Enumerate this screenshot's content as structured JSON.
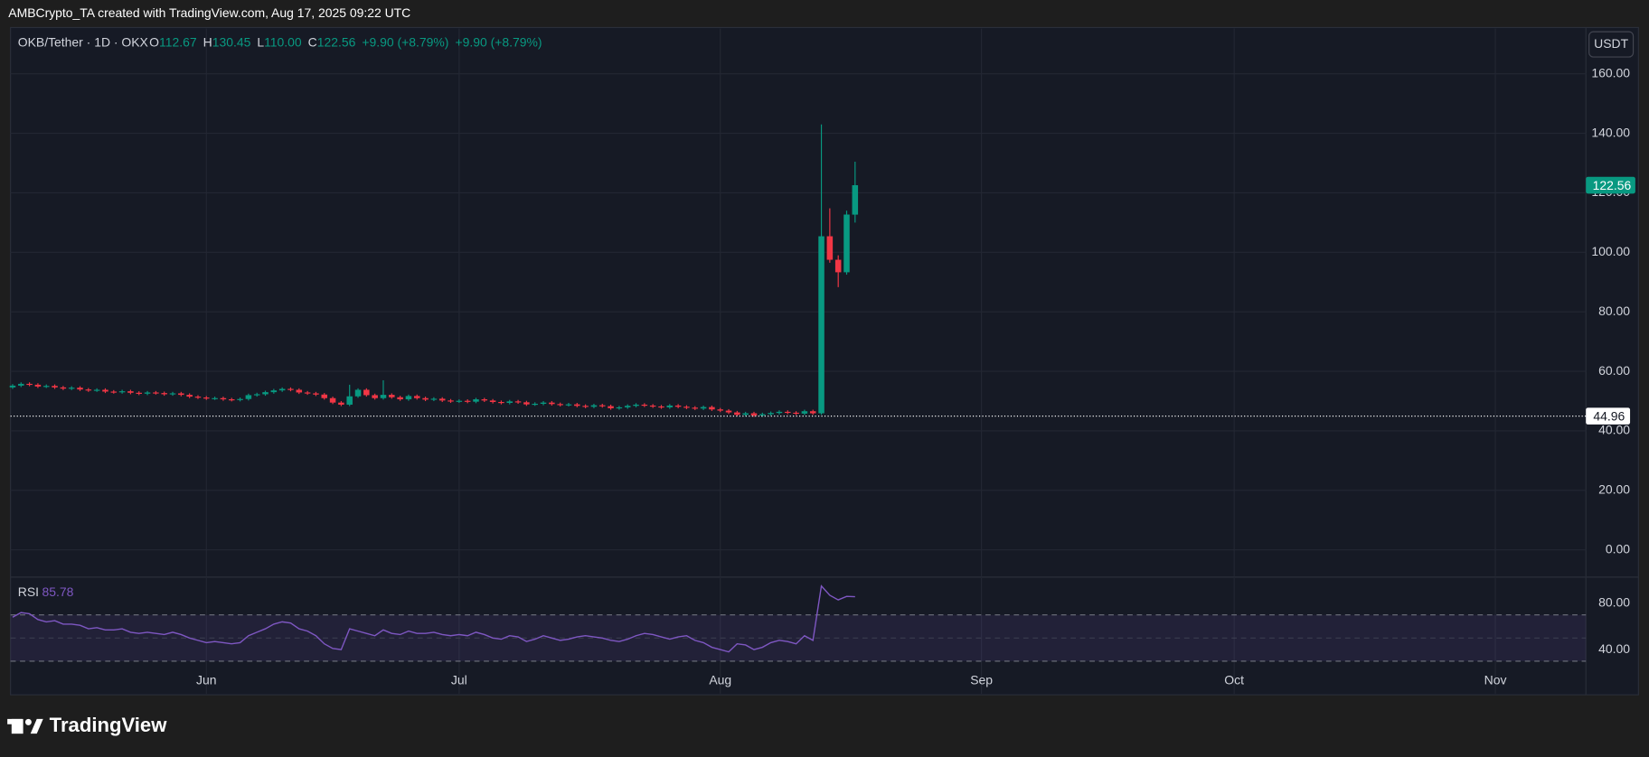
{
  "header": {
    "attribution": "AMBCrypto_TA created with TradingView.com, Aug 17, 2025 09:22 UTC",
    "brand": "TradingView"
  },
  "chart_data": {
    "type": "candlestick",
    "legend": {
      "symbol": "OKB/Tether · 1D · OKX",
      "o_label": "O",
      "o": "112.67",
      "h_label": "H",
      "h": "130.45",
      "l_label": "L",
      "l": "110.00",
      "c_label": "C",
      "c": "122.56",
      "change": "+9.90 (+8.79%)"
    },
    "currency": "USDT",
    "up_color": "#089981",
    "down_color": "#f23645",
    "open": [
      54.6,
      55.2,
      55.8,
      55.5,
      54.9,
      55.1,
      54.6,
      54.2,
      54.5,
      53.9,
      53.6,
      53.8,
      53.2,
      53.0,
      53.3,
      52.8,
      52.5,
      52.9,
      52.7,
      52.3,
      52.6,
      52.1,
      51.5,
      51.2,
      50.9,
      51.0,
      50.6,
      50.4,
      50.7,
      52.0,
      52.3,
      53.0,
      53.6,
      54.1,
      53.8,
      52.9,
      52.6,
      52.2,
      51.0,
      49.5,
      48.8,
      51.6,
      53.8,
      52.0,
      51.0,
      52.1,
      51.3,
      50.6,
      51.7,
      51.0,
      50.5,
      50.8,
      50.2,
      49.9,
      50.1,
      49.8,
      50.6,
      50.2,
      49.7,
      49.4,
      49.9,
      49.6,
      48.9,
      49.1,
      49.5,
      49.0,
      48.7,
      48.9,
      48.4,
      48.1,
      48.6,
      48.3,
      47.6,
      47.9,
      48.4,
      48.8,
      48.5,
      48.2,
      47.9,
      48.5,
      48.1,
      47.8,
      47.5,
      48.0,
      47.2,
      46.8,
      46.2,
      45.4,
      45.9,
      45.2,
      45.6,
      46.0,
      46.4,
      46.1,
      45.8,
      46.6,
      45.9,
      105.4,
      97.5,
      93.3,
      112.67
    ],
    "high": [
      55.7,
      56.3,
      56.3,
      56.0,
      55.6,
      55.6,
      55.1,
      55.0,
      55.0,
      54.4,
      54.3,
      54.3,
      53.7,
      53.8,
      53.8,
      53.3,
      53.4,
      53.4,
      53.2,
      53.1,
      53.1,
      52.6,
      52.0,
      51.7,
      51.5,
      51.5,
      51.1,
      51.2,
      52.5,
      52.8,
      53.5,
      54.1,
      54.6,
      54.6,
      54.3,
      53.4,
      53.1,
      52.7,
      51.5,
      50.0,
      55.5,
      54.3,
      54.3,
      52.5,
      57.0,
      52.6,
      51.8,
      52.2,
      52.2,
      51.5,
      51.3,
      51.3,
      50.7,
      50.6,
      50.6,
      51.1,
      51.1,
      50.7,
      50.2,
      50.4,
      50.4,
      50.1,
      49.6,
      50.0,
      50.0,
      49.5,
      49.4,
      49.4,
      48.9,
      49.1,
      49.1,
      48.8,
      48.4,
      48.9,
      49.3,
      49.3,
      49.0,
      48.7,
      49.0,
      49.0,
      48.6,
      48.3,
      48.5,
      48.5,
      47.7,
      47.3,
      46.7,
      46.4,
      46.4,
      46.1,
      46.5,
      46.9,
      46.9,
      46.6,
      47.1,
      47.1,
      143,
      114.8,
      99.0,
      114.0,
      130.45
    ],
    "low": [
      54.1,
      54.7,
      55.0,
      54.4,
      54.4,
      54.1,
      53.7,
      53.7,
      53.4,
      53.1,
      53.1,
      52.7,
      52.5,
      52.5,
      52.3,
      52.0,
      52.0,
      52.2,
      51.8,
      51.8,
      51.6,
      51.0,
      50.7,
      50.4,
      50.4,
      50.1,
      49.9,
      49.9,
      50.2,
      51.5,
      51.8,
      52.5,
      53.1,
      53.3,
      52.4,
      52.1,
      51.7,
      50.5,
      49.0,
      48.3,
      48.3,
      51.1,
      51.5,
      50.5,
      50.5,
      50.8,
      50.1,
      50.1,
      50.5,
      50.0,
      50.0,
      49.7,
      49.4,
      49.4,
      49.3,
      49.3,
      49.7,
      49.2,
      48.9,
      48.9,
      49.1,
      48.4,
      48.4,
      48.6,
      48.5,
      48.2,
      48.2,
      47.9,
      47.6,
      47.6,
      47.8,
      47.1,
      47.1,
      47.4,
      47.9,
      48.0,
      47.7,
      47.4,
      47.4,
      47.6,
      47.3,
      47.0,
      47.0,
      46.7,
      46.3,
      45.7,
      44.9,
      44.9,
      44.7,
      44.7,
      45.1,
      45.5,
      45.6,
      45.3,
      45.3,
      45.4,
      45.4,
      96.5,
      88.3,
      92.5,
      110.0
    ],
    "close": [
      55.2,
      55.8,
      55.5,
      54.9,
      55.1,
      54.6,
      54.2,
      54.5,
      53.9,
      53.6,
      53.8,
      53.2,
      53.0,
      53.3,
      52.8,
      52.5,
      52.9,
      52.7,
      52.3,
      52.6,
      52.1,
      51.5,
      51.2,
      50.9,
      51.0,
      50.6,
      50.4,
      50.7,
      52.0,
      52.3,
      53.0,
      53.6,
      54.1,
      53.8,
      52.9,
      52.6,
      52.2,
      51.0,
      49.5,
      48.8,
      51.6,
      53.8,
      52.0,
      51.0,
      52.1,
      51.3,
      50.6,
      51.7,
      51.0,
      50.5,
      50.8,
      50.2,
      49.9,
      50.1,
      49.8,
      50.6,
      50.2,
      49.7,
      49.4,
      49.9,
      49.6,
      48.9,
      49.1,
      49.5,
      49.0,
      48.7,
      48.9,
      48.4,
      48.1,
      48.6,
      48.3,
      47.6,
      47.9,
      48.4,
      48.8,
      48.5,
      48.2,
      47.9,
      48.5,
      48.1,
      47.8,
      47.5,
      48.0,
      47.2,
      46.8,
      46.2,
      45.4,
      45.9,
      45.2,
      45.6,
      46.0,
      46.4,
      46.1,
      45.8,
      46.6,
      45.9,
      105.4,
      97.5,
      93.3,
      112.7,
      122.56
    ],
    "xlim": [
      -0.25,
      186.75
    ],
    "xticks": [
      {
        "value": 23,
        "label": "Jun"
      },
      {
        "value": 53,
        "label": "Jul"
      },
      {
        "value": 84,
        "label": "Aug"
      },
      {
        "value": 115,
        "label": "Sep"
      },
      {
        "value": 145,
        "label": "Oct"
      },
      {
        "value": 176,
        "label": "Nov"
      }
    ],
    "ylim": [
      -8.8,
      175.2
    ],
    "yticks": [
      {
        "value": 0,
        "label": "0.00"
      },
      {
        "value": 20,
        "label": "20.00"
      },
      {
        "value": 40,
        "label": "40.00"
      },
      {
        "value": 60,
        "label": "60.00"
      },
      {
        "value": 80,
        "label": "80.00"
      },
      {
        "value": 100,
        "label": "100.00"
      },
      {
        "value": 120,
        "label": "120.00"
      },
      {
        "value": 140,
        "label": "140.00"
      },
      {
        "value": 160,
        "label": "160.00"
      }
    ],
    "last_price": {
      "value": 122.56,
      "label": "122.56"
    },
    "hline": {
      "value": 44.96,
      "label": "44.96"
    },
    "grid": true,
    "rsi": {
      "name": "RSI",
      "current": "85.78",
      "color": "#7e57c2",
      "values": [
        68,
        72,
        71,
        66,
        64,
        65,
        62,
        62,
        61,
        58,
        59,
        57,
        57,
        58,
        55,
        54,
        55,
        54,
        53,
        55,
        53,
        50,
        48,
        46,
        47,
        46,
        45,
        46,
        52,
        55,
        58,
        62,
        64,
        63,
        58,
        56,
        52,
        45,
        41,
        40,
        58,
        56,
        54,
        52,
        57,
        54,
        53,
        56,
        54,
        54,
        55,
        53,
        52,
        53,
        52,
        55,
        53,
        50,
        49,
        52,
        51,
        47,
        49,
        52,
        50,
        48,
        49,
        51,
        52,
        51,
        50,
        48,
        47,
        49,
        52,
        54,
        53,
        51,
        49,
        51,
        52,
        48,
        46,
        42,
        40,
        38,
        45,
        44,
        40,
        42,
        46,
        48,
        47,
        45,
        52,
        48,
        95,
        87,
        83,
        86,
        85.78
      ],
      "ylim": [
        1.8,
        101.8
      ],
      "yticks": [
        {
          "value": 40,
          "label": "40.00"
        },
        {
          "value": 80,
          "label": "80.00"
        }
      ],
      "bands": [
        30,
        50,
        70
      ]
    }
  }
}
